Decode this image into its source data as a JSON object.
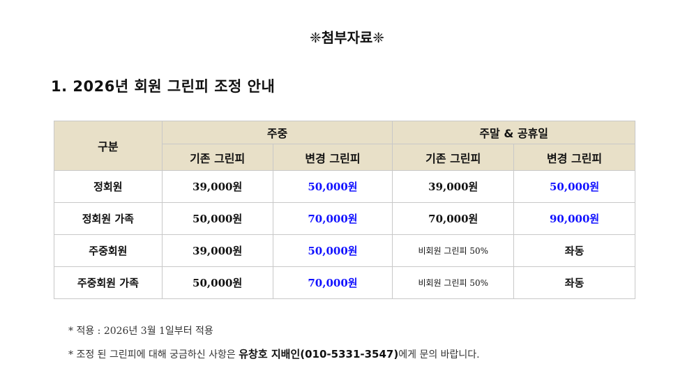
{
  "title": "❈첨부자료❈",
  "heading": "1. 2026년 회원 그린피 조정 안내",
  "table": {
    "col_category": "구분",
    "group_weekday": "주중",
    "group_weekend": "주말 & 공휴일",
    "sub_old": "기존 그린피",
    "sub_new": "변경 그린피",
    "rows": [
      {
        "category": "정회원",
        "wd_old": "39,000원",
        "wd_new": "50,000원",
        "we_old": "39,000원",
        "we_new": "50,000원"
      },
      {
        "category": "정회원 가족",
        "wd_old": "50,000원",
        "wd_new": "70,000원",
        "we_old": "70,000원",
        "we_new": "90,000원"
      },
      {
        "category": "주중회원",
        "wd_old": "39,000원",
        "wd_new": "50,000원",
        "we_old": "비회원 그린피 50%",
        "we_new": "좌동"
      },
      {
        "category": "주중회원 가족",
        "wd_old": "50,000원",
        "wd_new": "70,000원",
        "we_old": "비회원 그린피 50%",
        "we_new": "좌동"
      }
    ]
  },
  "notes": {
    "note1": "* 적용 : 2026년 3월 1일부터 적용",
    "note2_prefix": "* 조정 된 그린피에 대해 궁금하신 사항은 ",
    "note2_contact": "유창호 지배인(010-5331-3547)",
    "note2_suffix": "에게 문의 바랍니다."
  },
  "colors": {
    "header_bg": "#e8e0c8",
    "new_fee": "#1010ff"
  }
}
